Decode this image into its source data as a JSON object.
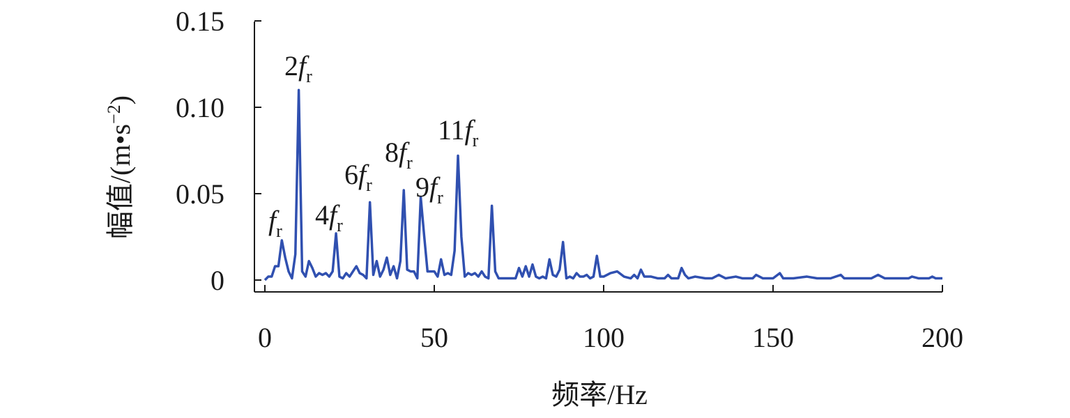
{
  "chart_data": {
    "type": "line",
    "xlabel": "频率/Hz",
    "ylabel": {
      "text": "幅值/(m•s",
      "sup": "−2",
      "close": ")"
    },
    "xlim": [
      0,
      200
    ],
    "xticks": [
      0,
      50,
      100,
      150,
      200
    ],
    "ylim": [
      0,
      0.15
    ],
    "yticks": [
      0,
      0.05,
      {
        "value": 0.1,
        "label": "0.10"
      },
      0.15
    ],
    "grid": false,
    "series": [
      {
        "color": "#3050b0",
        "x": [
          0,
          1,
          2,
          3,
          4,
          5,
          6,
          7,
          8,
          9,
          10,
          11,
          12,
          13,
          14,
          15,
          16,
          17,
          18,
          19,
          20,
          21,
          22,
          23,
          24,
          25,
          26,
          27,
          28,
          29,
          30,
          31,
          32,
          33,
          34,
          35,
          36,
          37,
          38,
          39,
          40,
          41,
          42,
          43,
          44,
          45,
          46,
          47,
          48,
          49,
          50,
          51,
          52,
          53,
          54,
          55,
          56,
          57,
          58,
          59,
          60,
          61,
          62,
          63,
          64,
          65,
          66,
          67,
          68,
          69,
          70,
          72,
          74,
          75,
          76,
          77,
          78,
          79,
          80,
          81,
          82,
          83,
          84,
          85,
          86,
          87,
          88,
          89,
          90,
          91,
          92,
          93,
          94,
          95,
          96,
          97,
          98,
          99,
          100,
          102,
          104,
          106,
          108,
          109,
          110,
          111,
          112,
          114,
          116,
          118,
          119,
          120,
          122,
          123,
          124,
          125,
          127,
          130,
          132,
          134,
          136,
          139,
          141,
          144,
          145,
          147,
          150,
          152,
          153,
          156,
          160,
          163,
          167,
          170,
          171,
          175,
          179,
          181,
          183,
          186,
          190,
          191,
          193,
          196,
          197,
          198,
          200
        ],
        "values": [
          0,
          0.002,
          0.002,
          0.008,
          0.008,
          0.023,
          0.013,
          0.005,
          0.001,
          0.015,
          0.11,
          0.005,
          0.002,
          0.011,
          0.007,
          0.002,
          0.004,
          0.003,
          0.004,
          0.002,
          0.005,
          0.027,
          0.002,
          0.001,
          0.004,
          0.002,
          0.005,
          0.008,
          0.004,
          0.003,
          0.001,
          0.045,
          0.003,
          0.011,
          0.002,
          0.006,
          0.013,
          0.003,
          0.008,
          0.001,
          0.011,
          0.052,
          0.006,
          0.005,
          0.005,
          0.001,
          0.048,
          0.026,
          0.005,
          0.005,
          0.005,
          0.002,
          0.012,
          0.003,
          0.004,
          0.003,
          0.017,
          0.072,
          0.025,
          0.002,
          0.004,
          0.003,
          0.004,
          0.002,
          0.005,
          0.002,
          0.001,
          0.043,
          0.005,
          0.001,
          0.001,
          0.001,
          0.001,
          0.007,
          0.002,
          0.008,
          0.002,
          0.009,
          0.002,
          0.001,
          0.002,
          0.001,
          0.012,
          0.003,
          0.002,
          0.006,
          0.022,
          0.001,
          0.002,
          0.001,
          0.004,
          0.002,
          0.002,
          0.003,
          0.001,
          0.002,
          0.014,
          0.002,
          0.002,
          0.004,
          0.005,
          0.002,
          0.001,
          0.003,
          0.001,
          0.006,
          0.002,
          0.002,
          0.001,
          0.001,
          0.003,
          0.001,
          0.001,
          0.007,
          0.003,
          0.001,
          0.002,
          0.001,
          0.001,
          0.003,
          0.001,
          0.002,
          0.001,
          0.001,
          0.003,
          0.001,
          0.001,
          0.004,
          0.001,
          0.001,
          0.002,
          0.001,
          0.001,
          0.003,
          0.001,
          0.001,
          0.001,
          0.003,
          0.001,
          0.001,
          0.001,
          0.002,
          0.001,
          0.001,
          0.002,
          0.001,
          0.001
        ]
      }
    ],
    "annotations": [
      {
        "prefix": "",
        "symbol": "f",
        "sub": "r"
      },
      {
        "prefix": "2",
        "symbol": "f",
        "sub": "r"
      },
      {
        "prefix": "4",
        "symbol": "f",
        "sub": "r"
      },
      {
        "prefix": "6",
        "symbol": "f",
        "sub": "r"
      },
      {
        "prefix": "8",
        "symbol": "f",
        "sub": "r"
      },
      {
        "prefix": "9",
        "symbol": "f",
        "sub": "r"
      },
      {
        "prefix": "11",
        "symbol": "f",
        "sub": "r"
      }
    ]
  }
}
